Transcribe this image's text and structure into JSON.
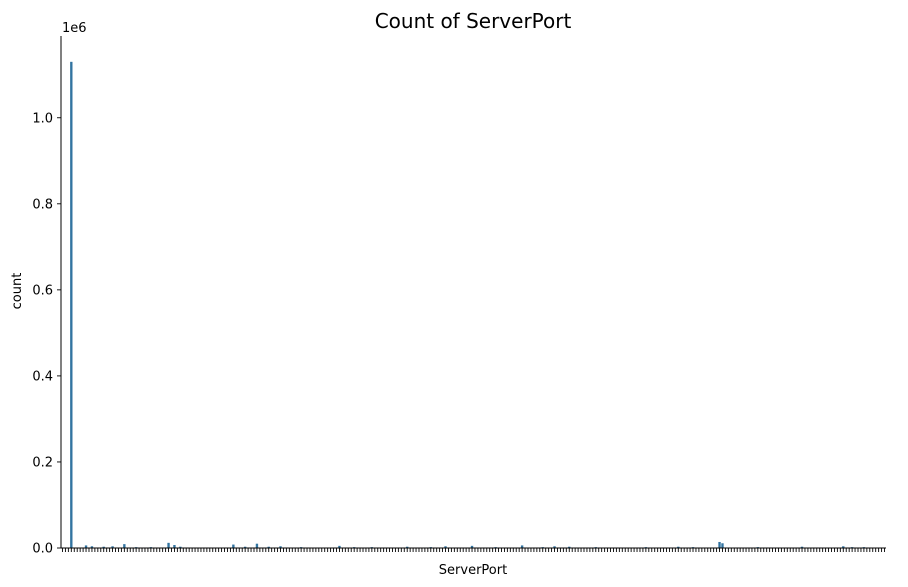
{
  "chart_data": {
    "type": "bar",
    "title": "Count of ServerPort",
    "xlabel": "ServerPort",
    "ylabel": "count",
    "y_offset_label": "1e6",
    "ylim": [
      0,
      1.19
    ],
    "y_ticks": [
      {
        "value": 0.0,
        "label": "0.0"
      },
      {
        "value": 0.2,
        "label": "0.2"
      },
      {
        "value": 0.4,
        "label": "0.4"
      },
      {
        "value": 0.6,
        "label": "0.6"
      },
      {
        "value": 0.8,
        "label": "0.8"
      },
      {
        "value": 1.0,
        "label": "1.0"
      }
    ],
    "category_count": 280,
    "x_tick_labels_visible": false,
    "grid": false,
    "bar_color": "#3274a1",
    "notable_bars": [
      {
        "index": 3,
        "value": 1.13
      },
      {
        "index": 8,
        "value": 0.006
      },
      {
        "index": 10,
        "value": 0.004
      },
      {
        "index": 14,
        "value": 0.003
      },
      {
        "index": 17,
        "value": 0.004
      },
      {
        "index": 21,
        "value": 0.009
      },
      {
        "index": 25,
        "value": 0.002
      },
      {
        "index": 30,
        "value": 0.002
      },
      {
        "index": 36,
        "value": 0.012
      },
      {
        "index": 38,
        "value": 0.007
      },
      {
        "index": 40,
        "value": 0.003
      },
      {
        "index": 58,
        "value": 0.008
      },
      {
        "index": 62,
        "value": 0.003
      },
      {
        "index": 66,
        "value": 0.01
      },
      {
        "index": 70,
        "value": 0.003
      },
      {
        "index": 74,
        "value": 0.004
      },
      {
        "index": 81,
        "value": 0.002
      },
      {
        "index": 94,
        "value": 0.005
      },
      {
        "index": 99,
        "value": 0.002
      },
      {
        "index": 105,
        "value": 0.002
      },
      {
        "index": 117,
        "value": 0.003
      },
      {
        "index": 125,
        "value": 0.002
      },
      {
        "index": 130,
        "value": 0.004
      },
      {
        "index": 139,
        "value": 0.005
      },
      {
        "index": 147,
        "value": 0.002
      },
      {
        "index": 156,
        "value": 0.006
      },
      {
        "index": 163,
        "value": 0.002
      },
      {
        "index": 167,
        "value": 0.004
      },
      {
        "index": 172,
        "value": 0.003
      },
      {
        "index": 181,
        "value": 0.002
      },
      {
        "index": 198,
        "value": 0.002
      },
      {
        "index": 209,
        "value": 0.003
      },
      {
        "index": 214,
        "value": 0.002
      },
      {
        "index": 223,
        "value": 0.014
      },
      {
        "index": 224,
        "value": 0.011
      },
      {
        "index": 236,
        "value": 0.002
      },
      {
        "index": 251,
        "value": 0.003
      },
      {
        "index": 265,
        "value": 0.004
      },
      {
        "index": 268,
        "value": 0.002
      },
      {
        "index": 272,
        "value": 0.002
      }
    ]
  }
}
